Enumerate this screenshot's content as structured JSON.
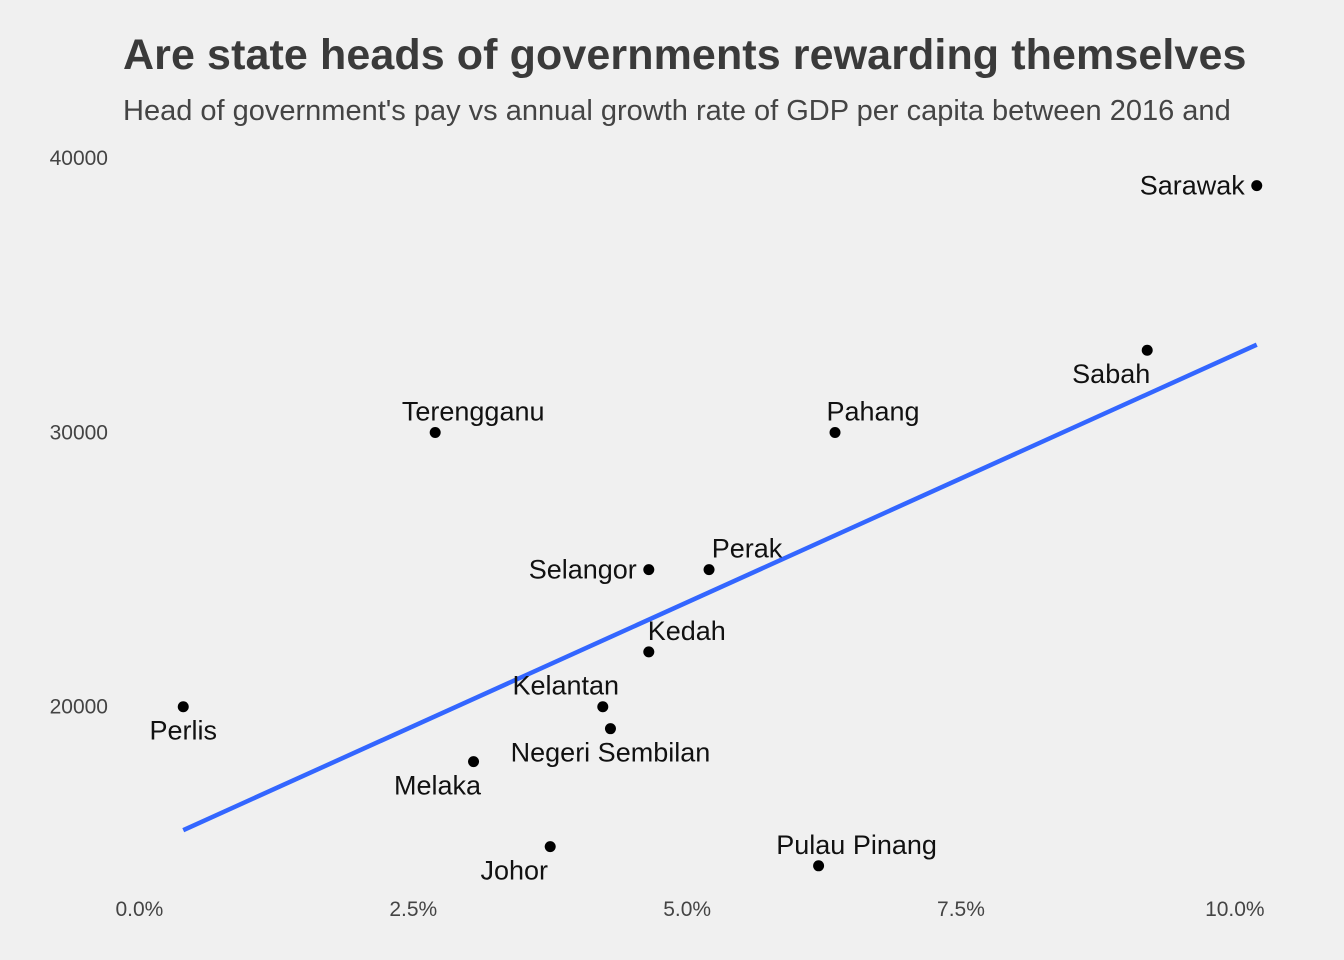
{
  "chart_data": {
    "type": "scatter",
    "title": "Are state heads of governments rewarding themselves",
    "subtitle": "Head of government's pay vs annual growth rate of GDP per capita between 2016 and",
    "xlabel": "",
    "ylabel": "",
    "xlim": [
      -0.0015,
      0.1075
    ],
    "ylim": [
      13500,
      40300
    ],
    "x_ticks": [
      {
        "value": 0.0,
        "label": "0.0%"
      },
      {
        "value": 0.025,
        "label": "2.5%"
      },
      {
        "value": 0.05,
        "label": "5.0%"
      },
      {
        "value": 0.075,
        "label": "7.5%"
      },
      {
        "value": 0.1,
        "label": "10.0%"
      }
    ],
    "y_ticks": [
      {
        "value": 20000,
        "label": "20000"
      },
      {
        "value": 30000,
        "label": "30000"
      },
      {
        "value": 40000,
        "label": "40000"
      }
    ],
    "grid": false,
    "points": [
      {
        "label": "Sarawak",
        "x": 0.102,
        "y": 39000,
        "label_pos": "left"
      },
      {
        "label": "Sabah",
        "x": 0.092,
        "y": 33000,
        "label_pos": "below-left"
      },
      {
        "label": "Terengganu",
        "x": 0.027,
        "y": 30000,
        "label_pos": "above"
      },
      {
        "label": "Pahang",
        "x": 0.0635,
        "y": 30000,
        "label_pos": "above"
      },
      {
        "label": "Selangor",
        "x": 0.0465,
        "y": 25000,
        "label_pos": "left"
      },
      {
        "label": "Perak",
        "x": 0.052,
        "y": 25000,
        "label_pos": "above"
      },
      {
        "label": "Kedah",
        "x": 0.0465,
        "y": 22000,
        "label_pos": "above"
      },
      {
        "label": "Kelantan",
        "x": 0.0423,
        "y": 20000,
        "label_pos": "above-left"
      },
      {
        "label": "Perlis",
        "x": 0.004,
        "y": 20000,
        "label_pos": "below"
      },
      {
        "label": "Negeri Sembilan",
        "x": 0.043,
        "y": 19200,
        "label_pos": "below"
      },
      {
        "label": "Melaka",
        "x": 0.0305,
        "y": 18000,
        "label_pos": "below-left"
      },
      {
        "label": "Johor",
        "x": 0.0375,
        "y": 14900,
        "label_pos": "below-left"
      },
      {
        "label": "Pulau Pinang",
        "x": 0.062,
        "y": 14200,
        "label_pos": "above"
      }
    ],
    "trendline": {
      "x": [
        0.004,
        0.102
      ],
      "y": [
        15500,
        33200
      ],
      "color": "#3366ff"
    },
    "point_color": "#000000"
  }
}
